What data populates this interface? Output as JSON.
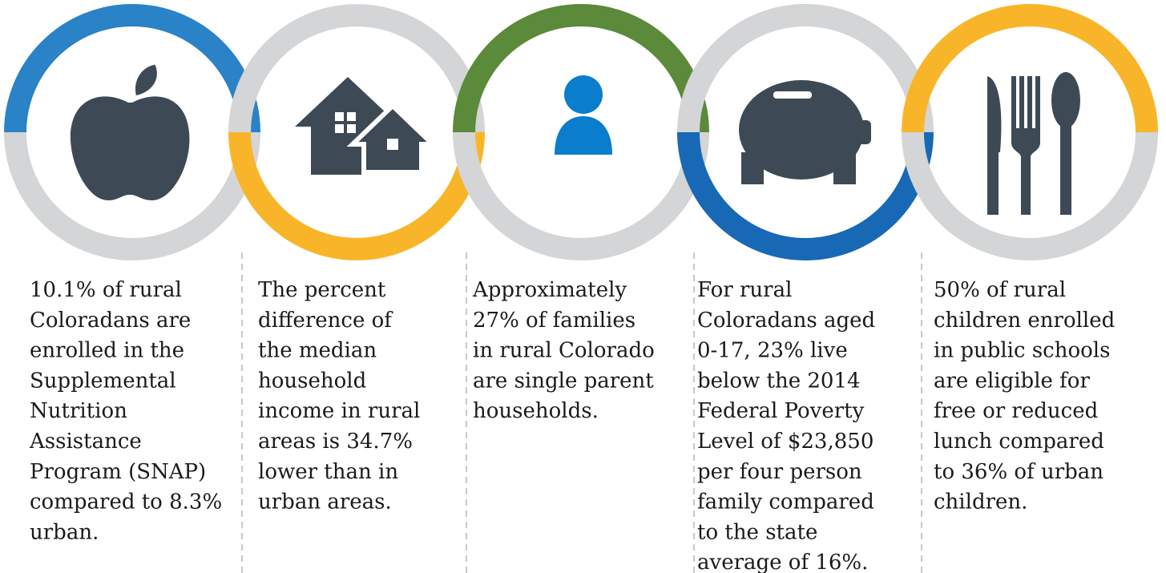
{
  "items": [
    {
      "lines": [
        "10.1% of rural",
        "Coloradans are",
        "enrolled in the",
        "Supplemental",
        "Nutrition",
        "Assistance",
        "Program (SNAP)",
        "compared to 8.3%",
        "urban."
      ]
    },
    {
      "lines": [
        "The percent",
        "difference of",
        "the median",
        "household",
        "income in rural",
        "areas is 34.7%",
        "lower than in",
        "urban areas."
      ]
    },
    {
      "lines": [
        "Approximately",
        "27% of families",
        "in rural Colorado",
        "are single parent",
        "households."
      ]
    },
    {
      "lines": [
        "For rural",
        "Coloradans aged",
        "0-17, 23% live",
        "below the 2014",
        "Federal Poverty",
        "Level of $23,850",
        "per four person",
        "family compared",
        "to the state",
        "average of 16%."
      ]
    },
    {
      "lines": [
        "50% of rural",
        "children enrolled",
        "in public schools",
        "are eligible for",
        "free or reduced",
        "lunch compared",
        "to 36% of urban",
        "children."
      ]
    }
  ]
}
